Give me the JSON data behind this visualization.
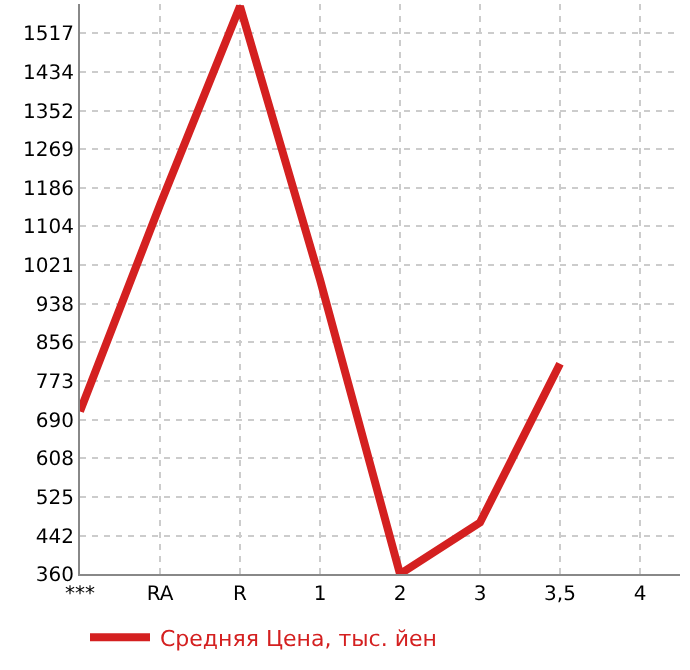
{
  "chart_data": {
    "type": "line",
    "categories": [
      "***",
      "RA",
      "R",
      "1",
      "2",
      "3",
      "3,5",
      "4"
    ],
    "series": [
      {
        "name": "Средняя Цена, тыс. йен",
        "color": "#d42020",
        "values": [
          708,
          1150,
          1575,
          990,
          360,
          470,
          810,
          null
        ]
      }
    ],
    "ylim": [
      360,
      1580
    ],
    "yticks": [
      360,
      442,
      525,
      608,
      690,
      773,
      856,
      938,
      1021,
      1104,
      1186,
      1269,
      1352,
      1434,
      1517
    ],
    "grid": true,
    "legend": "bottom",
    "marker": "none",
    "line_style": "solid"
  }
}
